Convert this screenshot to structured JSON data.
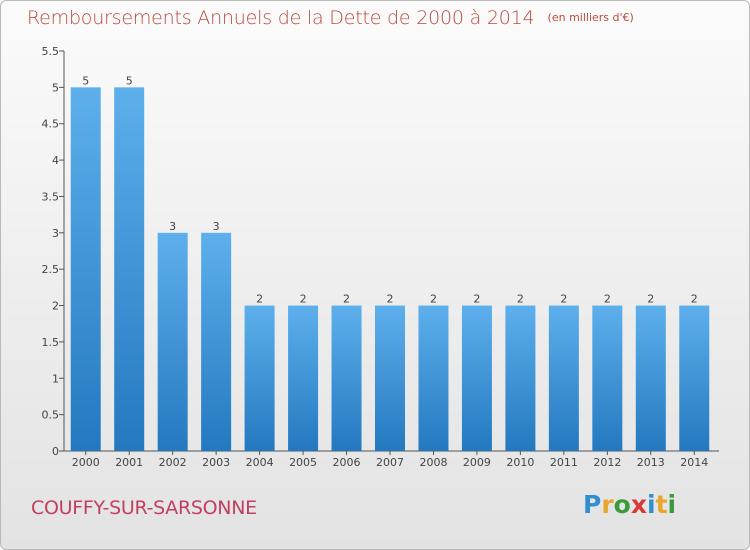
{
  "title": "Remboursements Annuels de la Dette de 2000 à 2014",
  "subtitle": "(en milliers d'€)",
  "town": "COUFFY-SUR-SARSONNE",
  "logo": {
    "letters": [
      "P",
      "r",
      "o",
      "x",
      "i",
      "t",
      "i"
    ],
    "colors": [
      "#2f8fd0",
      "#e8a62a",
      "#3b9a3b",
      "#d83a3a",
      "#2f8fd0",
      "#e8a62a",
      "#3b9a3b"
    ]
  },
  "colors": {
    "bar": "#3d95d8",
    "bar_light": "#5db0ec",
    "bar_dark": "#2478bf"
  },
  "chart_data": {
    "type": "bar",
    "categories": [
      "2000",
      "2001",
      "2002",
      "2003",
      "2004",
      "2005",
      "2006",
      "2007",
      "2008",
      "2009",
      "2010",
      "2011",
      "2012",
      "2013",
      "2014"
    ],
    "values": [
      5,
      5,
      3,
      3,
      2,
      2,
      2,
      2,
      2,
      2,
      2,
      2,
      2,
      2,
      2
    ],
    "data_labels": [
      "5",
      "5",
      "3",
      "3",
      "2",
      "2",
      "2",
      "2",
      "2",
      "2",
      "2",
      "2",
      "2",
      "2",
      "2"
    ],
    "ylim": [
      0,
      5.5
    ],
    "yticks": [
      0,
      0.5,
      1,
      1.5,
      2,
      2.5,
      3,
      3.5,
      4,
      4.5,
      5,
      5.5
    ],
    "ytick_labels": [
      "0",
      "0.5",
      "1",
      "1.5",
      "2",
      "2.5",
      "3",
      "3.5",
      "4",
      "4.5",
      "5",
      "5.5"
    ],
    "grid": false,
    "xlabel": "",
    "ylabel": ""
  }
}
